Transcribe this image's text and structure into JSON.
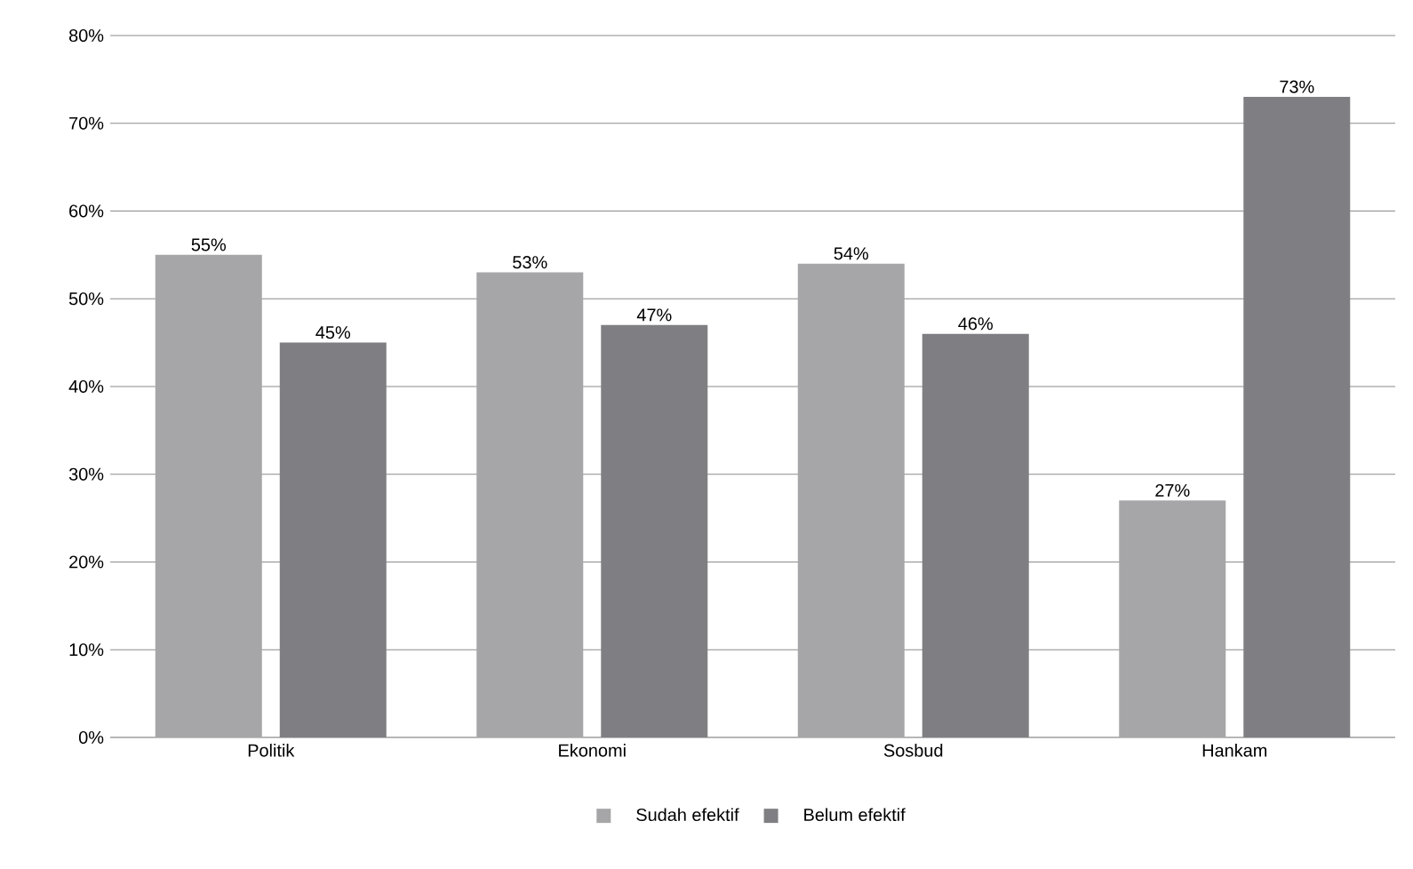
{
  "chart_data": {
    "type": "bar",
    "categories": [
      "Politik",
      "Ekonomi",
      "Sosbud",
      "Hankam"
    ],
    "series": [
      {
        "name": "Sudah efektif",
        "color": "#a6a6a8",
        "values": [
          55,
          53,
          54,
          27
        ],
        "value_labels": [
          "55%",
          "53%",
          "54%",
          "27%"
        ]
      },
      {
        "name": "Belum efektif",
        "color": "#7f7f83",
        "values": [
          45,
          47,
          46,
          73
        ],
        "value_labels": [
          "45%",
          "47%",
          "46%",
          "73%"
        ]
      }
    ],
    "ylim": [
      0,
      80
    ],
    "yticks": [
      {
        "value": 0,
        "label": "0%"
      },
      {
        "value": 10,
        "label": "10%"
      },
      {
        "value": 20,
        "label": "20%"
      },
      {
        "value": 30,
        "label": "30%"
      },
      {
        "value": 40,
        "label": "40%"
      },
      {
        "value": 50,
        "label": "50%"
      },
      {
        "value": 60,
        "label": "60%"
      },
      {
        "value": 70,
        "label": "70%"
      },
      {
        "value": 80,
        "label": "80%"
      }
    ],
    "grid": "y",
    "legend": "bottom"
  }
}
